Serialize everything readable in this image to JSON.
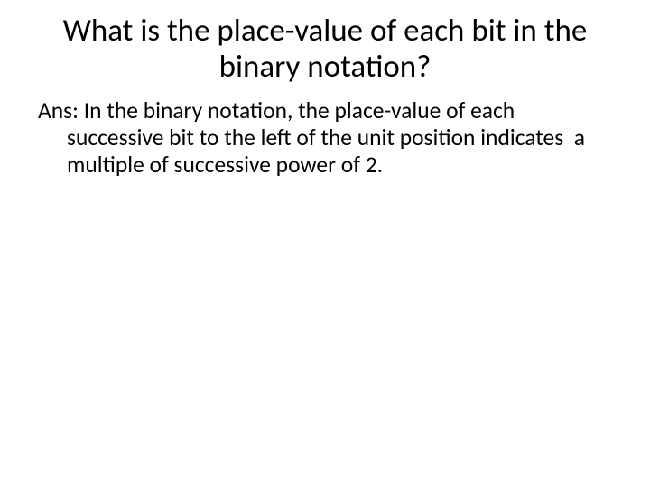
{
  "title_fontsize": 35,
  "body_fontsize": 25.5,
  "text_color": "#000000",
  "background_color": "#ffffff",
  "font_family": "Calibri",
  "title": "What is the place-value of each bit in the binary notation?",
  "body": "Ans: In the binary notation, the place-value of each successive bit to the left of the unit position indicates  a multiple of successive power of 2."
}
